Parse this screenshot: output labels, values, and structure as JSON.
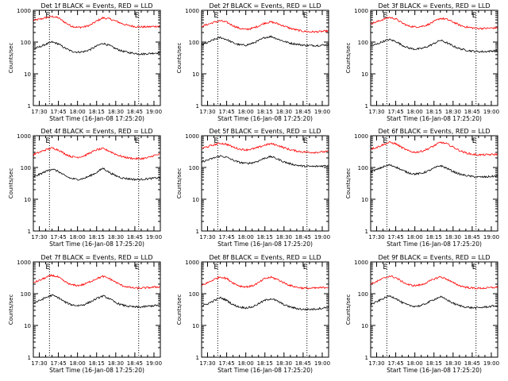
{
  "figure": {
    "x_tick_labels": [
      "17:30",
      "17:45",
      "18:00",
      "18:15",
      "18:30",
      "18:45",
      "19:00"
    ],
    "y_tick_labels": [
      "1",
      "10",
      "100",
      "1000"
    ],
    "x_axis_label": "Start Time (16-Jan-08 17:25:20)",
    "y_axis_label": "Counts/sec",
    "marker_label": "E",
    "colors": {
      "events": "#000000",
      "lld": "#ff0000",
      "axes": "#000000"
    }
  },
  "chart_data": [
    {
      "type": "line",
      "title": "Det 1f BLACK = Events, RED = LLD",
      "xlabel": "Start Time (16-Jan-08 17:25:20)",
      "ylabel": "Counts/sec",
      "x_range": [
        "17:25:20",
        "19:05"
      ],
      "y_scale": "log",
      "ylim": [
        1,
        1000
      ],
      "markers": [
        "17:38",
        "18:48"
      ],
      "x": [
        "17:25",
        "17:30",
        "17:35",
        "17:40",
        "17:45",
        "17:50",
        "17:55",
        "18:00",
        "18:05",
        "18:10",
        "18:15",
        "18:20",
        "18:25",
        "18:30",
        "18:35",
        "18:40",
        "18:45",
        "18:50",
        "18:55",
        "19:00",
        "19:05"
      ],
      "series": [
        {
          "name": "LLD",
          "color": "#ff0000",
          "values": [
            480,
            520,
            580,
            640,
            580,
            420,
            320,
            290,
            300,
            340,
            460,
            580,
            540,
            460,
            380,
            330,
            310,
            300,
            300,
            310,
            320
          ]
        },
        {
          "name": "Events",
          "color": "#000000",
          "values": [
            60,
            70,
            85,
            100,
            88,
            65,
            52,
            48,
            50,
            58,
            75,
            92,
            78,
            62,
            52,
            47,
            44,
            42,
            43,
            45,
            46
          ]
        }
      ]
    },
    {
      "type": "line",
      "title": "Det 2f BLACK = Events, RED = LLD",
      "xlabel": "Start Time (16-Jan-08 17:25:20)",
      "ylabel": "Counts/sec",
      "x_range": [
        "17:25:20",
        "19:05"
      ],
      "y_scale": "log",
      "ylim": [
        1,
        1000
      ],
      "markers": [
        "17:38",
        "18:48"
      ],
      "x": [
        "17:25",
        "17:30",
        "17:35",
        "17:40",
        "17:45",
        "17:50",
        "17:55",
        "18:00",
        "18:05",
        "18:10",
        "18:15",
        "18:20",
        "18:25",
        "18:30",
        "18:35",
        "18:40",
        "18:45",
        "18:50",
        "18:55",
        "19:00",
        "19:05"
      ],
      "series": [
        {
          "name": "LLD",
          "color": "#ff0000",
          "values": [
            310,
            360,
            420,
            470,
            420,
            330,
            270,
            250,
            270,
            320,
            400,
            430,
            380,
            320,
            270,
            240,
            220,
            210,
            210,
            215,
            225
          ]
        },
        {
          "name": "Events",
          "color": "#000000",
          "values": [
            80,
            95,
            120,
            140,
            120,
            95,
            82,
            80,
            90,
            110,
            140,
            150,
            125,
            105,
            92,
            86,
            80,
            78,
            78,
            80,
            82
          ]
        }
      ]
    },
    {
      "type": "line",
      "title": "Det 3f BLACK = Events, RED = LLD",
      "xlabel": "Start Time (16-Jan-08 17:25:20)",
      "ylabel": "Counts/sec",
      "x_range": [
        "17:25:20",
        "19:05"
      ],
      "y_scale": "log",
      "ylim": [
        1,
        1000
      ],
      "markers": [
        "17:38",
        "18:48"
      ],
      "x": [
        "17:25",
        "17:30",
        "17:35",
        "17:40",
        "17:45",
        "17:50",
        "17:55",
        "18:00",
        "18:05",
        "18:10",
        "18:15",
        "18:20",
        "18:25",
        "18:30",
        "18:35",
        "18:40",
        "18:45",
        "18:50",
        "18:55",
        "19:00",
        "19:05"
      ],
      "series": [
        {
          "name": "LLD",
          "color": "#ff0000",
          "values": [
            380,
            430,
            520,
            600,
            540,
            400,
            320,
            300,
            310,
            350,
            440,
            560,
            520,
            430,
            340,
            300,
            280,
            270,
            270,
            275,
            280
          ]
        },
        {
          "name": "Events",
          "color": "#000000",
          "values": [
            75,
            85,
            105,
            120,
            105,
            80,
            65,
            60,
            62,
            72,
            90,
            115,
            95,
            75,
            62,
            56,
            52,
            50,
            50,
            52,
            54
          ]
        }
      ]
    },
    {
      "type": "line",
      "title": "Det 4f BLACK = Events, RED = LLD",
      "xlabel": "Start Time (16-Jan-08 17:25:20)",
      "ylabel": "Counts/sec",
      "x_range": [
        "17:25:20",
        "19:05"
      ],
      "y_scale": "log",
      "ylim": [
        1,
        1000
      ],
      "markers": [
        "17:38",
        "18:48"
      ],
      "x": [
        "17:25",
        "17:30",
        "17:35",
        "17:40",
        "17:45",
        "17:50",
        "17:55",
        "18:00",
        "18:05",
        "18:10",
        "18:15",
        "18:20",
        "18:25",
        "18:30",
        "18:35",
        "18:40",
        "18:45",
        "18:50",
        "18:55",
        "19:00",
        "19:05"
      ],
      "series": [
        {
          "name": "LLD",
          "color": "#ff0000",
          "values": [
            250,
            300,
            360,
            410,
            360,
            270,
            220,
            210,
            230,
            290,
            360,
            390,
            330,
            260,
            220,
            200,
            190,
            190,
            200,
            240,
            260
          ]
        },
        {
          "name": "Events",
          "color": "#000000",
          "values": [
            50,
            60,
            75,
            90,
            75,
            55,
            45,
            42,
            45,
            55,
            70,
            95,
            70,
            55,
            47,
            44,
            42,
            42,
            44,
            46,
            48
          ]
        }
      ]
    },
    {
      "type": "line",
      "title": "Det 5f BLACK = Events, RED = LLD",
      "xlabel": "Start Time (16-Jan-08 17:25:20)",
      "ylabel": "Counts/sec",
      "x_range": [
        "17:25:20",
        "19:05"
      ],
      "y_scale": "log",
      "ylim": [
        1,
        1000
      ],
      "markers": [
        "17:38",
        "18:48"
      ],
      "x": [
        "17:25",
        "17:30",
        "17:35",
        "17:40",
        "17:45",
        "17:50",
        "17:55",
        "18:00",
        "18:05",
        "18:10",
        "18:15",
        "18:20",
        "18:25",
        "18:30",
        "18:35",
        "18:40",
        "18:45",
        "18:50",
        "18:55",
        "19:00",
        "19:05"
      ],
      "series": [
        {
          "name": "LLD",
          "color": "#ff0000",
          "values": [
            400,
            450,
            520,
            580,
            540,
            440,
            380,
            360,
            380,
            430,
            510,
            560,
            500,
            420,
            360,
            330,
            310,
            300,
            300,
            310,
            320
          ]
        },
        {
          "name": "Events",
          "color": "#000000",
          "values": [
            150,
            170,
            200,
            230,
            210,
            170,
            145,
            135,
            140,
            160,
            200,
            220,
            185,
            150,
            130,
            118,
            110,
            108,
            108,
            112,
            115
          ]
        }
      ]
    },
    {
      "type": "line",
      "title": "Det 6f BLACK = Events, RED = LLD",
      "xlabel": "Start Time (16-Jan-08 17:25:20)",
      "ylabel": "Counts/sec",
      "x_range": [
        "17:25:20",
        "19:05"
      ],
      "y_scale": "log",
      "ylim": [
        1,
        1000
      ],
      "markers": [
        "17:38",
        "18:48"
      ],
      "x": [
        "17:25",
        "17:30",
        "17:35",
        "17:40",
        "17:45",
        "17:50",
        "17:55",
        "18:00",
        "18:05",
        "18:10",
        "18:15",
        "18:20",
        "18:25",
        "18:30",
        "18:35",
        "18:40",
        "18:45",
        "18:50",
        "18:55",
        "19:00",
        "19:05"
      ],
      "series": [
        {
          "name": "LLD",
          "color": "#ff0000",
          "values": [
            380,
            430,
            520,
            620,
            560,
            420,
            330,
            300,
            320,
            380,
            480,
            620,
            560,
            440,
            340,
            290,
            260,
            250,
            250,
            255,
            260
          ]
        },
        {
          "name": "Events",
          "color": "#000000",
          "values": [
            75,
            85,
            105,
            120,
            105,
            82,
            68,
            62,
            65,
            76,
            95,
            115,
            95,
            75,
            62,
            56,
            52,
            50,
            50,
            52,
            54
          ]
        }
      ]
    },
    {
      "type": "line",
      "title": "Det 7f BLACK = Events, RED = LLD",
      "xlabel": "Start Time (16-Jan-08 17:25:20)",
      "ylabel": "Counts/sec",
      "x_range": [
        "17:25:20",
        "19:05"
      ],
      "y_scale": "log",
      "ylim": [
        1,
        1000
      ],
      "markers": [
        "17:38",
        "18:48"
      ],
      "x": [
        "17:25",
        "17:30",
        "17:35",
        "17:40",
        "17:45",
        "17:50",
        "17:55",
        "18:00",
        "18:05",
        "18:10",
        "18:15",
        "18:20",
        "18:25",
        "18:30",
        "18:35",
        "18:40",
        "18:45",
        "18:50",
        "18:55",
        "19:00",
        "19:05"
      ],
      "series": [
        {
          "name": "LLD",
          "color": "#ff0000",
          "values": [
            220,
            260,
            320,
            380,
            330,
            240,
            190,
            180,
            195,
            240,
            300,
            350,
            300,
            230,
            180,
            160,
            150,
            150,
            155,
            160,
            165
          ]
        },
        {
          "name": "Events",
          "color": "#000000",
          "values": [
            50,
            60,
            75,
            90,
            75,
            55,
            45,
            42,
            45,
            55,
            70,
            85,
            70,
            52,
            44,
            40,
            38,
            38,
            40,
            42,
            44
          ]
        }
      ]
    },
    {
      "type": "line",
      "title": "Det 8f BLACK = Events, RED = LLD",
      "xlabel": "Start Time (16-Jan-08 17:25:20)",
      "ylabel": "Counts/sec",
      "x_range": [
        "17:25:20",
        "19:05"
      ],
      "y_scale": "log",
      "ylim": [
        1,
        1000
      ],
      "markers": [
        "17:38",
        "18:48"
      ],
      "x": [
        "17:25",
        "17:30",
        "17:35",
        "17:40",
        "17:45",
        "17:50",
        "17:55",
        "18:00",
        "18:05",
        "18:10",
        "18:15",
        "18:20",
        "18:25",
        "18:30",
        "18:35",
        "18:40",
        "18:45",
        "18:50",
        "18:55",
        "19:00",
        "19:05"
      ],
      "series": [
        {
          "name": "LLD",
          "color": "#ff0000",
          "values": [
            180,
            220,
            280,
            340,
            300,
            220,
            175,
            165,
            175,
            220,
            300,
            330,
            280,
            220,
            180,
            160,
            150,
            148,
            150,
            155,
            160
          ]
        },
        {
          "name": "Events",
          "color": "#000000",
          "values": [
            40,
            48,
            60,
            75,
            62,
            45,
            38,
            36,
            38,
            48,
            62,
            70,
            58,
            45,
            38,
            34,
            32,
            32,
            33,
            35,
            37
          ]
        }
      ]
    },
    {
      "type": "line",
      "title": "Det 9f BLACK = Events, RED = LLD",
      "xlabel": "Start Time (16-Jan-08 17:25:20)",
      "ylabel": "Counts/sec",
      "x_range": [
        "17:25:20",
        "19:05"
      ],
      "y_scale": "log",
      "ylim": [
        1,
        1000
      ],
      "markers": [
        "17:38",
        "18:48"
      ],
      "x": [
        "17:25",
        "17:30",
        "17:35",
        "17:40",
        "17:45",
        "17:50",
        "17:55",
        "18:00",
        "18:05",
        "18:10",
        "18:15",
        "18:20",
        "18:25",
        "18:30",
        "18:35",
        "18:40",
        "18:45",
        "18:50",
        "18:55",
        "19:00",
        "19:05"
      ],
      "series": [
        {
          "name": "LLD",
          "color": "#ff0000",
          "values": [
            200,
            240,
            300,
            360,
            320,
            240,
            190,
            180,
            190,
            230,
            290,
            340,
            290,
            220,
            180,
            160,
            150,
            148,
            150,
            155,
            160
          ]
        },
        {
          "name": "Events",
          "color": "#000000",
          "values": [
            45,
            55,
            70,
            85,
            72,
            52,
            43,
            40,
            42,
            52,
            66,
            80,
            65,
            50,
            42,
            38,
            36,
            36,
            38,
            40,
            42
          ]
        }
      ]
    }
  ]
}
